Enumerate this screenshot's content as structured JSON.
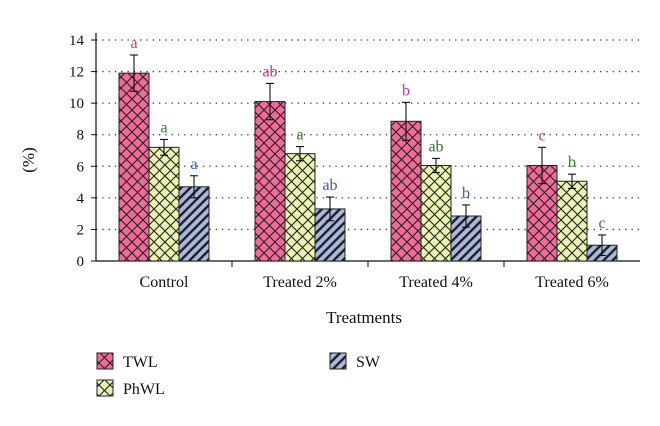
{
  "chart_data": {
    "type": "bar",
    "title": "",
    "xlabel": "Treatments",
    "ylabel": "(%)",
    "ylim": [
      0,
      14
    ],
    "yticks": [
      0,
      2,
      4,
      6,
      8,
      10,
      12,
      14
    ],
    "grid": "horizontal dotted",
    "legend_position": "bottom",
    "categories": [
      "Control",
      "Treated 2%",
      "Treated 4%",
      "Treated 6%"
    ],
    "series": [
      {
        "name": "TWL",
        "color": "#f06a9a",
        "pattern": "crosshatch",
        "values": [
          11.9,
          10.1,
          8.85,
          6.05
        ],
        "errors": [
          1.15,
          1.15,
          1.2,
          1.15
        ],
        "letters": [
          "a",
          "ab",
          "b",
          "c"
        ],
        "letter_color": "#c2378a"
      },
      {
        "name": "PhWL",
        "color": "#eaf3b0",
        "pattern": "crosshatch",
        "values": [
          7.2,
          6.8,
          6.05,
          5.05
        ],
        "errors": [
          0.5,
          0.45,
          0.45,
          0.45
        ],
        "letters": [
          "a",
          "a",
          "ab",
          "b"
        ],
        "letter_color": "#2e7d1e"
      },
      {
        "name": "SW",
        "color": "#a8b8e0",
        "pattern": "diagonal",
        "values": [
          4.7,
          3.3,
          2.85,
          1.0
        ],
        "errors": [
          0.7,
          0.75,
          0.7,
          0.65
        ],
        "letters": [
          "a",
          "ab",
          "b",
          "c"
        ],
        "letter_color": "#3a5aa6"
      }
    ]
  }
}
